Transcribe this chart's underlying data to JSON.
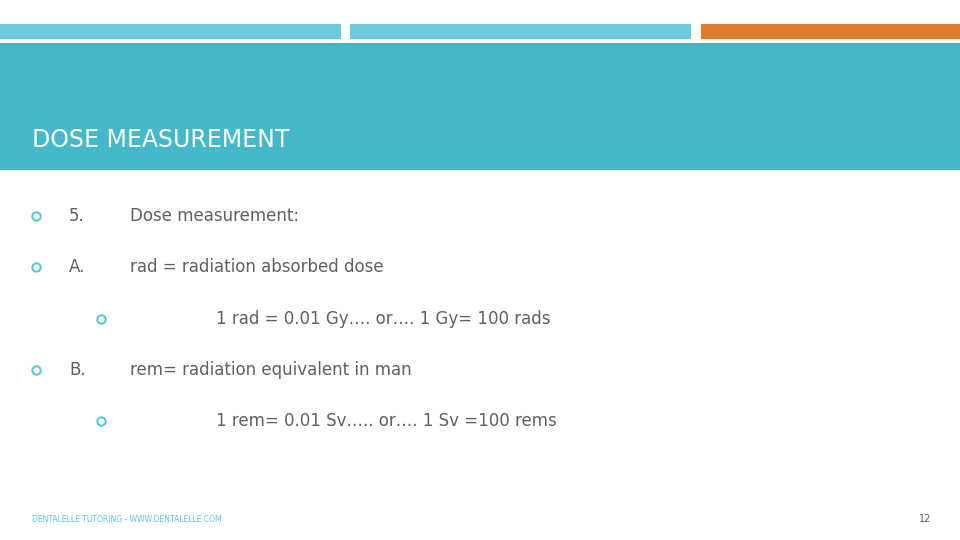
{
  "title": "DOSE MEASUREMENT",
  "title_color": "#FFFFFF",
  "title_bg_color": "#45B8CA",
  "header_bar1_color": "#6BCCD8",
  "header_bar2_color": "#6BCCD8",
  "header_bar3_color": "#E07B30",
  "bullet_color": "#5CC8D8",
  "text_color": "#606060",
  "background_color": "#FFFFFF",
  "footer_text": "DENTALELLE TUTORING - WWW.DENTALELLE.COM",
  "footer_page": "12",
  "footer_color": "#5CC8D8",
  "bullets": [
    {
      "indent": 0,
      "label": "5.",
      "text": "Dose measurement:"
    },
    {
      "indent": 0,
      "label": "A.",
      "text": "rad = radiation absorbed dose"
    },
    {
      "indent": 1,
      "label": "",
      "text": "1 rad = 0.01 Gy…. or…. 1 Gy= 100 rads"
    },
    {
      "indent": 0,
      "label": "B.",
      "text": "rem= radiation equivalent in man"
    },
    {
      "indent": 1,
      "label": "",
      "text": "1 rem= 0.01 Sv….. or…. 1 Sv =100 rems"
    }
  ]
}
